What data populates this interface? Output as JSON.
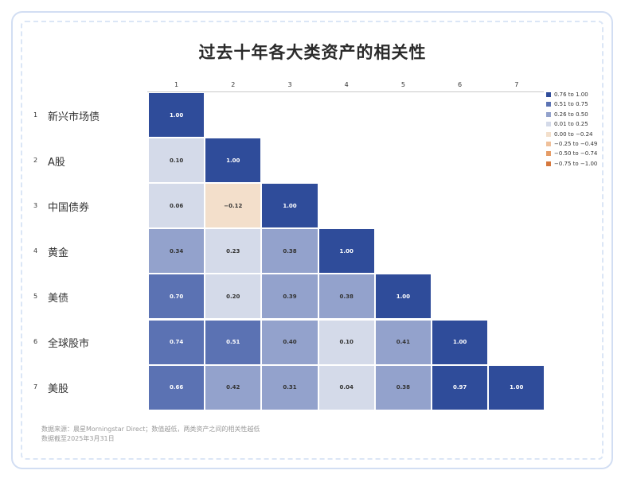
{
  "chart_data": {
    "type": "heatmap",
    "title": "过去十年各大类资产的相关性",
    "columns": [
      "1",
      "2",
      "3",
      "4",
      "5",
      "6",
      "7"
    ],
    "rows": [
      {
        "num": "1",
        "label": "新兴市场债"
      },
      {
        "num": "2",
        "label": "A股"
      },
      {
        "num": "3",
        "label": "中国债券"
      },
      {
        "num": "4",
        "label": "黄金"
      },
      {
        "num": "5",
        "label": "美债"
      },
      {
        "num": "6",
        "label": "全球股市"
      },
      {
        "num": "7",
        "label": "美股"
      }
    ],
    "values": [
      [
        "1.00"
      ],
      [
        "0.10",
        "1.00"
      ],
      [
        "0.06",
        "−0.12",
        "1.00"
      ],
      [
        "0.34",
        "0.23",
        "0.38",
        "1.00"
      ],
      [
        "0.70",
        "0.20",
        "0.39",
        "0.38",
        "1.00"
      ],
      [
        "0.74",
        "0.51",
        "0.40",
        "0.10",
        "0.41",
        "1.00"
      ],
      [
        "0.66",
        "0.42",
        "0.31",
        "0.04",
        "0.38",
        "0.97",
        "1.00"
      ]
    ],
    "legend": [
      {
        "label": "0.76 to 1.00",
        "color": "#2f4c9a"
      },
      {
        "label": "0.51 to 0.75",
        "color": "#5b72b3"
      },
      {
        "label": "0.26 to 0.50",
        "color": "#93a2cc"
      },
      {
        "label": "0.01 to 0.25",
        "color": "#d4dae9"
      },
      {
        "label": "0.00 to −0.24",
        "color": "#f3dfcb"
      },
      {
        "label": "−0.25 to −0.49",
        "color": "#efc09a"
      },
      {
        "label": "−0.50 to −0.74",
        "color": "#e59c66"
      },
      {
        "label": "−0.75 to −1.00",
        "color": "#d5773c"
      }
    ],
    "legend_placement": "right"
  },
  "source_lines": [
    "数据来源：晨星Morningstar Direct；数值越低，两类资产之间的相关性越低",
    "数据截至2025年3月31日"
  ]
}
